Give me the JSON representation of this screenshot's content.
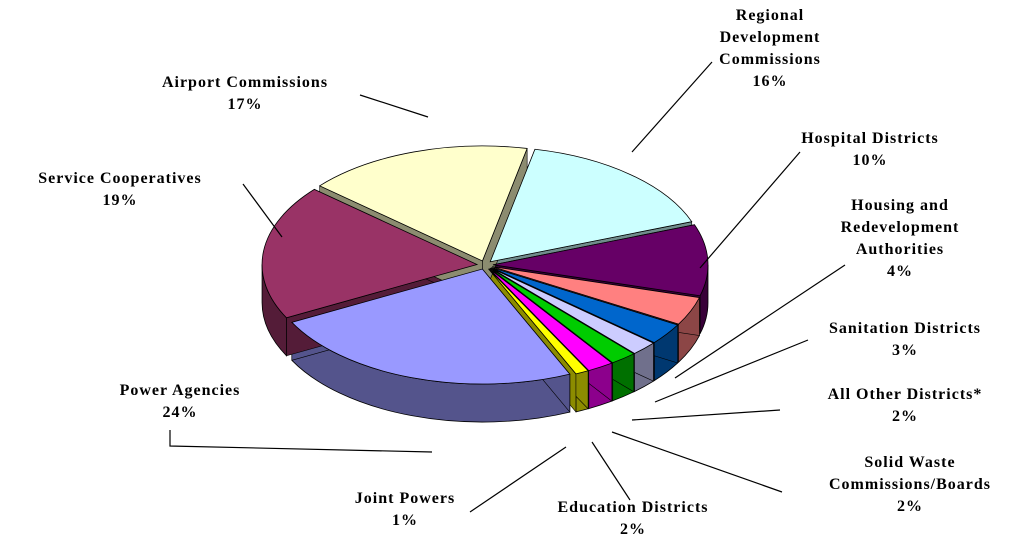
{
  "chart_data": {
    "type": "pie",
    "categories": [
      "Regional Development Commissions",
      "Hospital Districts",
      "Housing and Redevelopment Authorities",
      "Sanitation Districts",
      "All Other Districts*",
      "Solid Waste Commissions/Boards",
      "Education Districts",
      "Joint Powers",
      "Power Agencies",
      "Service Cooperatives",
      "Airport Commissions"
    ],
    "values": [
      16,
      10,
      4,
      3,
      2,
      2,
      2,
      1,
      24,
      19,
      17
    ],
    "value_labels": [
      "16%",
      "10%",
      "4%",
      "3%",
      "2%",
      "2%",
      "2%",
      "1%",
      "24%",
      "19%",
      "17%"
    ],
    "colors": [
      "#ccffff",
      "#660066",
      "#ff8080",
      "#0066cc",
      "#ccccff",
      "#00cc00",
      "#ff00ff",
      "#ffff00",
      "#9999ff",
      "#993366",
      "#ffffcc"
    ]
  }
}
